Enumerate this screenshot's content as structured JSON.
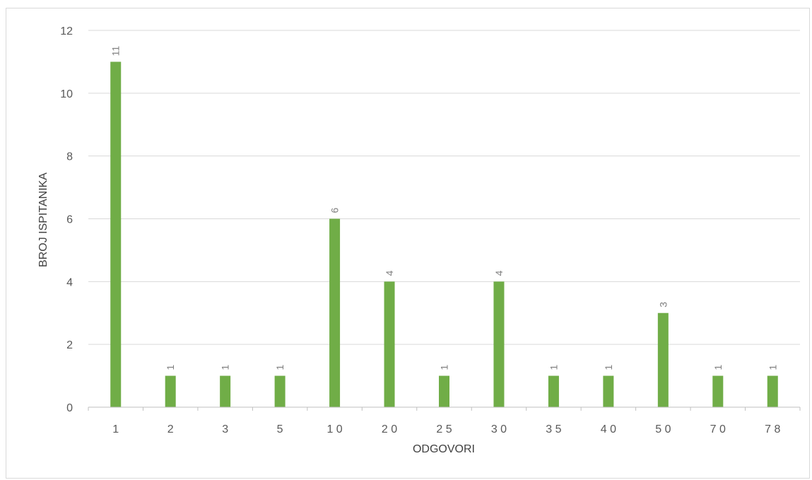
{
  "chart_data": {
    "type": "bar",
    "title": "",
    "xlabel": "ODGOVORI",
    "ylabel": "BROJ ISPITANIKA",
    "categories": [
      "1",
      "2",
      "3",
      "5",
      "10",
      "20",
      "25",
      "30",
      "35",
      "40",
      "50",
      "70",
      "78"
    ],
    "category_display": [
      "1",
      "2",
      "3",
      "5",
      "1 0",
      "2 0",
      "2 5",
      "3 0",
      "3 5",
      "4 0",
      "5 0",
      "7 0",
      "7 8"
    ],
    "values": [
      11,
      1,
      1,
      1,
      6,
      4,
      1,
      4,
      1,
      1,
      3,
      1,
      1
    ],
    "ylim": [
      0,
      12
    ],
    "yticks": [
      "0",
      "2",
      "4",
      "6",
      "8",
      "10",
      "12"
    ],
    "grid": true,
    "legend": "none",
    "data_labels": true,
    "data_label_rotation": "vertical",
    "bar_color": "#70ad47",
    "grid_color": "#d9d9d9",
    "axis_color": "#bfbfbf",
    "border_color": "#d9d9d9"
  }
}
